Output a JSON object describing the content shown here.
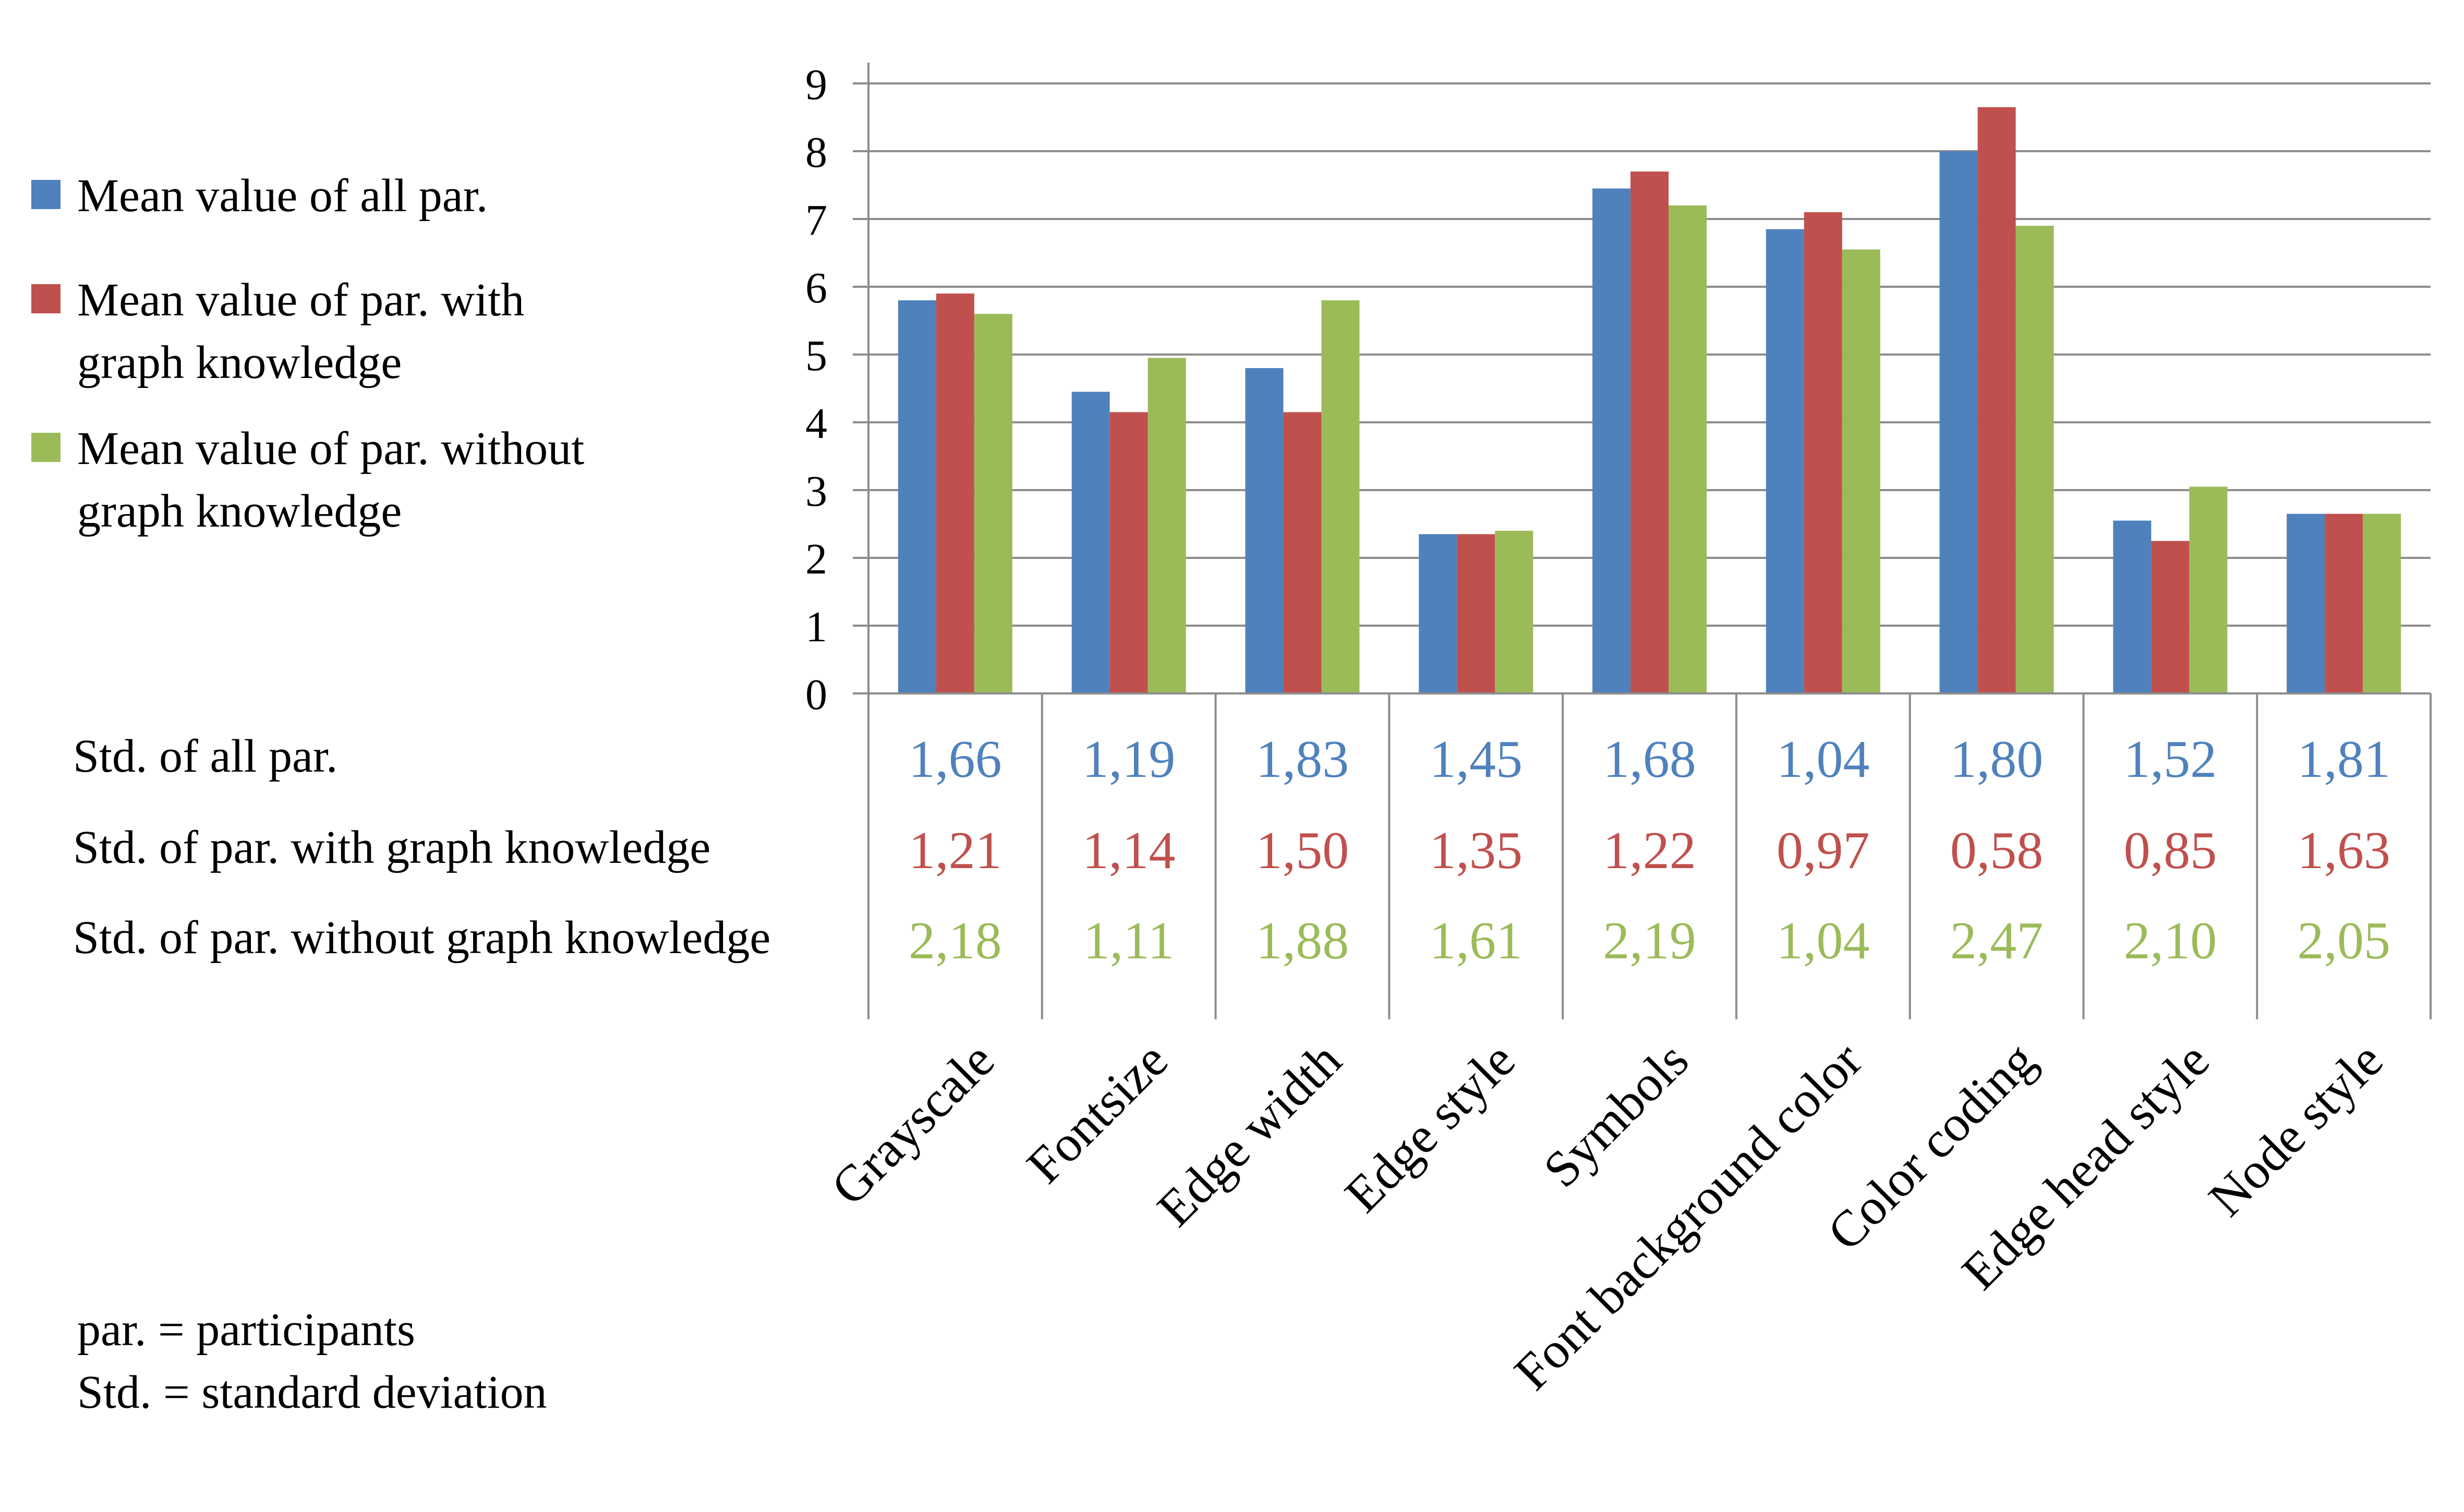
{
  "chart_data": {
    "type": "bar",
    "categories": [
      "Grayscale",
      "Fontsize",
      "Edge width",
      "Edge style",
      "Symbols",
      "Font background color",
      "Color coding",
      "Edge head style",
      "Node style"
    ],
    "ylim": [
      0,
      9
    ],
    "yticks": [
      0,
      1,
      2,
      3,
      4,
      5,
      6,
      7,
      8,
      9
    ],
    "grid": true,
    "legend_position": "left",
    "series": [
      {
        "name": "Mean value of all par.",
        "color": "#4f81bd",
        "values": [
          5.8,
          4.45,
          4.8,
          2.35,
          7.45,
          6.85,
          8.0,
          2.55,
          2.65
        ]
      },
      {
        "name": "Mean value of par. with graph knowledge",
        "color": "#c0504d",
        "values": [
          5.9,
          4.15,
          4.15,
          2.35,
          7.7,
          7.1,
          8.65,
          2.25,
          2.65
        ]
      },
      {
        "name": "Mean value of par. without graph knowledge",
        "color": "#9bbb59",
        "values": [
          5.6,
          4.95,
          5.8,
          2.4,
          7.2,
          6.55,
          6.9,
          3.05,
          2.65
        ]
      }
    ],
    "legend_lines": [
      [
        "Mean value of all par."
      ],
      [
        "Mean value of par. with",
        "graph knowledge"
      ],
      [
        "Mean value of par. without",
        "graph knowledge"
      ]
    ],
    "table": {
      "rows": [
        {
          "label": "Std. of all par.",
          "color": "#4f81bd",
          "values": [
            "1,66",
            "1,19",
            "1,83",
            "1,45",
            "1,68",
            "1,04",
            "1,80",
            "1,52",
            "1,81"
          ]
        },
        {
          "label": "Std. of par. with graph knowledge",
          "color": "#c0504d",
          "values": [
            "1,21",
            "1,14",
            "1,50",
            "1,35",
            "1,22",
            "0,97",
            "0,58",
            "0,85",
            "1,63"
          ]
        },
        {
          "label": "Std. of par. without graph knowledge",
          "color": "#9bbb59",
          "values": [
            "2,18",
            "1,11",
            "1,88",
            "1,61",
            "2,19",
            "1,04",
            "2,47",
            "2,10",
            "2,05"
          ]
        }
      ]
    },
    "notes": [
      "par. = participants",
      "Std. = standard deviation"
    ]
  }
}
